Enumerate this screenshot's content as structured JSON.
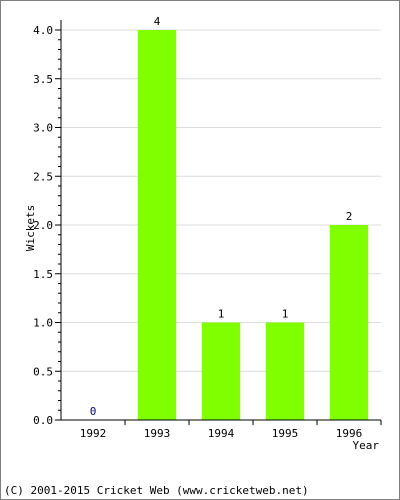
{
  "chart_data": {
    "type": "bar",
    "categories": [
      "1992",
      "1993",
      "1994",
      "1995",
      "1996"
    ],
    "values": [
      0,
      4,
      1,
      1,
      2
    ],
    "value_labels": [
      "0",
      "4",
      "1",
      "1",
      "2"
    ],
    "xlabel": "Year",
    "ylabel": "Wickets",
    "ylim": [
      0,
      4
    ],
    "yticks": [
      "0.0",
      "0.5",
      "1.0",
      "1.5",
      "2.0",
      "2.5",
      "3.0",
      "3.5",
      "4.0"
    ],
    "grid": true,
    "bar_color": "#80ff00",
    "zero_label_color": "#000080"
  },
  "footer": "(C) 2001-2015 Cricket Web (www.cricketweb.net)"
}
